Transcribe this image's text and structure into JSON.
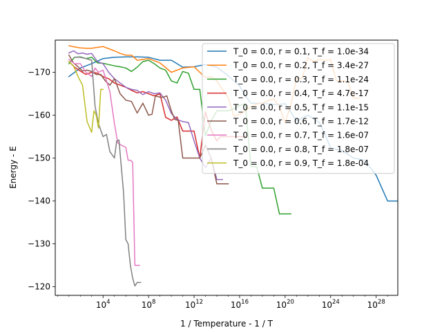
{
  "chart_data": {
    "type": "line",
    "title": "",
    "xlabel": "1 / Temperature - 1 / T",
    "ylabel": "Energy - E",
    "xscale": "log",
    "yaxis_inverted": true,
    "xlim_log10": [
      -0.2,
      29.9
    ],
    "ylim": [
      -118,
      -177.5
    ],
    "xticks": [
      {
        "log10": 4,
        "base": "10",
        "exp": "4"
      },
      {
        "log10": 8,
        "base": "10",
        "exp": "8"
      },
      {
        "log10": 12,
        "base": "10",
        "exp": "12"
      },
      {
        "log10": 16,
        "base": "10",
        "exp": "16"
      },
      {
        "log10": 20,
        "base": "10",
        "exp": "20"
      },
      {
        "log10": 24,
        "base": "10",
        "exp": "24"
      },
      {
        "log10": 28,
        "base": "10",
        "exp": "28"
      }
    ],
    "yticks": [
      -170,
      -160,
      -150,
      -140,
      -130,
      -120
    ],
    "grid": false,
    "legend_position": "top-right",
    "series": [
      {
        "name": "T_0 = 0.0, r = 0.1, T_f = 1.0e-34",
        "color": "#1f77b4",
        "x_log10": [
          1.0,
          2.0,
          3.0,
          4.0,
          5.0,
          6.0,
          7.0,
          8.0,
          9.0,
          10.0,
          11.0,
          12.0,
          13.0,
          14.0,
          15.0,
          16.0,
          16.5,
          17.0,
          18.0,
          19.0,
          19.5,
          20.0,
          21.0,
          22.0,
          23.0,
          23.5,
          24.0,
          25.0,
          26.0,
          27.0,
          28.0,
          29.0,
          29.9
        ],
        "y": [
          -169,
          -171,
          -172,
          -173.2,
          -173.5,
          -173.6,
          -173.6,
          -173.5,
          -172.8,
          -172.8,
          -171.2,
          -171.3,
          -171.8,
          -171.2,
          -169.2,
          -166.8,
          -164.5,
          -162.8,
          -162.8,
          -162.5,
          -162.5,
          -162.7,
          -158.7,
          -160,
          -158.3,
          -155.6,
          -152.3,
          -151.8,
          -150,
          -149.5,
          -146,
          -140,
          -140
        ]
      },
      {
        "name": "T_0 = 0.0, r = 0.2, T_f = 3.4e-27",
        "color": "#ff7f0e",
        "x_log10": [
          1.0,
          1.5,
          2.0,
          2.5,
          3.0,
          4.0,
          5.0,
          5.5,
          6.0,
          6.5,
          7.0,
          8.0,
          9.0,
          10.0,
          11.0,
          12.0,
          12.5,
          13.0,
          13.5,
          14.0,
          14.5,
          15.0,
          15.5,
          16.0,
          16.5,
          17.0,
          17.5,
          18.0,
          18.5,
          19.0,
          19.5,
          20.0,
          20.5,
          21.0,
          21.5,
          22.0,
          22.5,
          23.0,
          23.5,
          24.0,
          24.5,
          25.0,
          25.5,
          26.0,
          26.5
        ],
        "y": [
          -176.2,
          -175.9,
          -175.7,
          -175.6,
          -175.6,
          -176,
          -175,
          -174.4,
          -174,
          -174,
          -172.8,
          -173.2,
          -172.2,
          -170,
          -171,
          -171.3,
          -170,
          -168.8,
          -169,
          -168,
          -166,
          -164,
          -159.8,
          -160.2,
          -161,
          -162,
          -162.6,
          -162.8,
          -163.4,
          -163.8,
          -162,
          -158.2,
          -162.4,
          -168.6,
          -168.6,
          -173.4,
          -172.5,
          -173,
          -172.8,
          -172.9,
          -168,
          -168,
          -167.8,
          -164,
          -164
        ]
      },
      {
        "name": "T_0 = 0.0, r = 0.3, T_f = 1.1e-24",
        "color": "#2ca02c",
        "x_log10": [
          1.0,
          1.5,
          2.0,
          2.5,
          3.0,
          3.5,
          4.0,
          4.5,
          5.0,
          5.5,
          6.0,
          6.5,
          7.0,
          7.5,
          8.0,
          8.5,
          9.0,
          9.5,
          10.0,
          10.5,
          11.0,
          11.5,
          12.0,
          12.5,
          13.0,
          13.5,
          14.0,
          14.5,
          15.0,
          15.5,
          16.0,
          16.5,
          17.0,
          17.5,
          18.0,
          18.5,
          19.0,
          19.5,
          20.0,
          20.5
        ],
        "y": [
          -172,
          -173.5,
          -173.6,
          -173.2,
          -173.5,
          -172.2,
          -172.1,
          -171.8,
          -171.5,
          -171.3,
          -171,
          -170.2,
          -171.2,
          -172.5,
          -172.8,
          -172,
          -171,
          -170.5,
          -168,
          -167.5,
          -170.2,
          -169.8,
          -166,
          -166,
          -155.2,
          -158.7,
          -161,
          -161,
          -161,
          -161.5,
          -162.3,
          -162.7,
          -148,
          -148,
          -143,
          -143,
          -143,
          -137,
          -137,
          -137
        ]
      },
      {
        "name": "T_0 = 0.0, r = 0.4, T_f = 4.7e-17",
        "color": "#d62728",
        "x_log10": [
          1.0,
          1.5,
          2.0,
          2.5,
          3.0,
          3.5,
          4.0,
          4.5,
          5.0,
          5.5,
          6.0,
          6.5,
          7.0,
          7.5,
          8.0,
          8.5,
          9.0,
          9.5,
          10.0,
          10.5,
          11.0,
          11.5,
          12.0,
          12.5,
          13.0,
          13.3,
          13.6,
          14.0,
          14.3,
          14.6,
          15.0,
          15.5,
          16.0,
          16.5
        ],
        "y": [
          -172.5,
          -171.2,
          -170.3,
          -169.5,
          -170,
          -169.8,
          -169,
          -168.5,
          -167.5,
          -167,
          -166.5,
          -165.8,
          -165.2,
          -165.5,
          -165,
          -164.5,
          -165,
          -159.5,
          -158.8,
          -159.6,
          -156.3,
          -156.3,
          -156.3,
          -150,
          -160.8,
          -158,
          -156,
          -154,
          -155,
          -155,
          -155,
          -155,
          -155,
          -155
        ]
      },
      {
        "name": "T_0 = 0.0, r = 0.5, T_f = 1.1e-15",
        "color": "#9467bd",
        "x_log10": [
          1.0,
          1.4,
          1.8,
          2.2,
          2.6,
          3.0,
          3.5,
          4.0,
          4.5,
          5.0,
          5.5,
          6.0,
          6.5,
          7.0,
          7.5,
          8.0,
          8.5,
          9.0,
          9.5,
          10.0,
          10.5,
          11.0,
          11.5,
          12.0,
          12.5,
          13.0,
          13.5,
          14.0,
          14.5
        ],
        "y": [
          -174.5,
          -175,
          -174.3,
          -174.5,
          -174.2,
          -174.4,
          -172.5,
          -172,
          -170,
          -168.5,
          -167.5,
          -166.5,
          -166,
          -165.8,
          -164.8,
          -165.5,
          -165,
          -165.2,
          -163.5,
          -160.4,
          -159,
          -158.5,
          -158.3,
          -154,
          -150,
          -147.8,
          -150,
          -145,
          -145
        ]
      },
      {
        "name": "T_0 = 0.0, r = 0.6, T_f = 1.7e-12",
        "color": "#8c564b",
        "x_log10": [
          1.0,
          1.4,
          1.8,
          2.2,
          2.6,
          3.0,
          3.4,
          3.8,
          4.2,
          4.6,
          5.0,
          5.5,
          6.0,
          6.5,
          7.0,
          7.5,
          8.0,
          8.3,
          8.6,
          9.0,
          9.3,
          9.6,
          10.0,
          10.3,
          10.6,
          11.0,
          11.5,
          12.0,
          12.5,
          13.0,
          13.5,
          14.0,
          14.5,
          15.0
        ],
        "y": [
          -174,
          -172.2,
          -171.3,
          -170.3,
          -170.5,
          -170.2,
          -169.5,
          -169.5,
          -168,
          -167,
          -168.5,
          -165,
          -163.5,
          -163.2,
          -160.5,
          -162.8,
          -160,
          -160.2,
          -164.5,
          -164.2,
          -164.2,
          -164.5,
          -161,
          -159,
          -158.8,
          -150,
          -150,
          -150,
          -150,
          -153,
          -150,
          -144,
          -144,
          -144
        ]
      },
      {
        "name": "T_0 = 0.0, r = 0.7, T_f = 1.6e-07",
        "color": "#e377c2",
        "x_log10": [
          1.0,
          1.5,
          2.0,
          2.5,
          3.0,
          3.3,
          3.6,
          4.0,
          4.3,
          4.6,
          5.0,
          5.3,
          5.6,
          6.0,
          6.2,
          6.4,
          6.6,
          6.8,
          7.0,
          7.2
        ],
        "y": [
          -173,
          -172,
          -172,
          -170,
          -169,
          -171,
          -170,
          -170.5,
          -168,
          -165.5,
          -158,
          -153.5,
          -153,
          -152.5,
          -149.5,
          -149.5,
          -149,
          -125,
          -125,
          -125
        ]
      },
      {
        "name": "T_0 = 0.0, r = 0.8, T_f = 1.8e-07",
        "color": "#7f7f7f",
        "x_log10": [
          1.5,
          2.0,
          2.5,
          3.0,
          3.3,
          3.6,
          4.0,
          4.3,
          4.6,
          5.0,
          5.2,
          5.4,
          5.6,
          5.8,
          6.0,
          6.2,
          6.4,
          6.6,
          6.8,
          7.0,
          7.3
        ],
        "y": [
          -173.5,
          -173.5,
          -173.2,
          -172.8,
          -162,
          -158,
          -155,
          -155.5,
          -151.5,
          -150,
          -154,
          -154.2,
          -148,
          -142,
          -131,
          -130,
          -125,
          -122,
          -120.2,
          -121,
          -121
        ]
      },
      {
        "name": "T_0 = 0.0, r = 0.9, T_f = 1.8e-04",
        "color": "#bcbd22",
        "x_log10": [
          1.0,
          1.4,
          1.8,
          2.2,
          2.6,
          3.0,
          3.2,
          3.4,
          3.6,
          3.8,
          4.0
        ],
        "y": [
          -172.5,
          -171.5,
          -169,
          -167,
          -158.5,
          -156,
          -161,
          -160,
          -157,
          -166,
          -166
        ]
      }
    ]
  }
}
